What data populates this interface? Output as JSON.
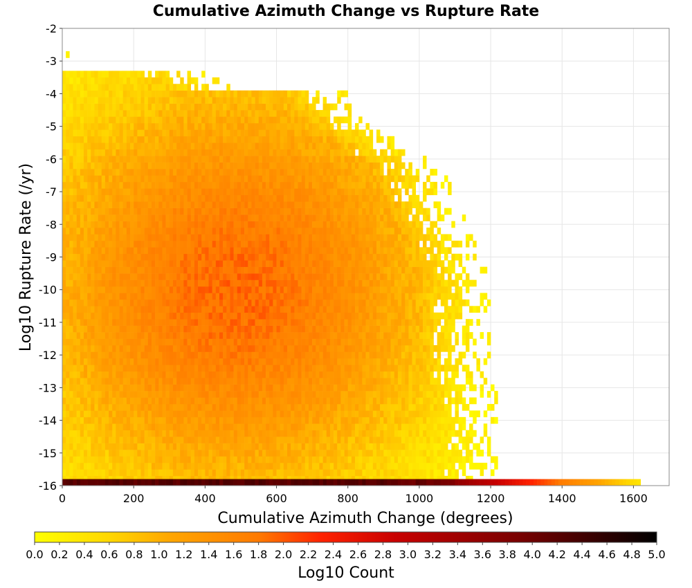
{
  "chart_data": {
    "type": "heatmap",
    "title": "Cumulative Azimuth Change vs Rupture Rate",
    "xlabel": "Cumulative Azimuth Change (degrees)",
    "ylabel": "Log10 Rupture Rate (/yr)",
    "xlim": [
      0,
      1700
    ],
    "ylim": [
      -16,
      -2
    ],
    "xticks": [
      0,
      200,
      400,
      600,
      800,
      1000,
      1200,
      1400,
      1600
    ],
    "yticks": [
      -2,
      -3,
      -4,
      -5,
      -6,
      -7,
      -8,
      -9,
      -10,
      -11,
      -12,
      -13,
      -14,
      -15,
      -16
    ],
    "grid": true,
    "bin_width_x": 10,
    "bin_height_y": 0.2,
    "density_description_note": null,
    "bottom_row_y": -16,
    "bottom_row_x_max": 1620,
    "density": {
      "peak_x": 480,
      "peak_y": -10,
      "peak_log10_count": 1.9,
      "max_x_extent": 1230,
      "max_y_extent": -2.7
    },
    "colorbar": {
      "label": "Log10 Count",
      "min": 0.0,
      "max": 5.0,
      "ticks": [
        "0.0",
        "0.2",
        "0.4",
        "0.6",
        "0.8",
        "1.0",
        "1.2",
        "1.4",
        "1.6",
        "1.8",
        "2.0",
        "2.2",
        "2.4",
        "2.6",
        "2.8",
        "3.0",
        "3.2",
        "3.4",
        "3.6",
        "3.8",
        "4.0",
        "4.2",
        "4.4",
        "4.6",
        "4.8",
        "5.0"
      ],
      "colors": [
        "#ffff00",
        "#ffd700",
        "#ffa500",
        "#ff7a00",
        "#ff2200",
        "#c80000",
        "#780000",
        "#000000"
      ],
      "stops": [
        0.0,
        0.12,
        0.22,
        0.36,
        0.46,
        0.58,
        0.78,
        1.0
      ]
    }
  }
}
